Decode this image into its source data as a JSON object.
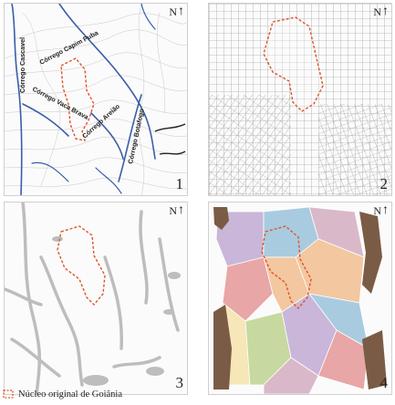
{
  "panels": [
    {
      "number": "1",
      "north": "N",
      "streams": [
        {
          "label": "Córrego Cascavel"
        },
        {
          "label": "Córrego Capim Puba"
        },
        {
          "label": "Córrego Vaca Brava"
        },
        {
          "label": "Córrego Areião"
        },
        {
          "label": "Córrego Botafogo"
        }
      ]
    },
    {
      "number": "2",
      "north": "N"
    },
    {
      "number": "3",
      "north": "N"
    },
    {
      "number": "4",
      "north": "N"
    }
  ],
  "legend": {
    "label": "Núcleo original de Goiânia"
  },
  "colors": {
    "boundary": "#e0542b",
    "river": "#3a5ea8",
    "streets": "#8a8a8a",
    "green_areas": "#bdbdbd",
    "land_use": [
      "#f3c79f",
      "#c9b6d8",
      "#a9cbe0",
      "#e8a6a6",
      "#c7d9a0",
      "#f6e6b8",
      "#7a5b46",
      "#d9b9c9"
    ]
  }
}
